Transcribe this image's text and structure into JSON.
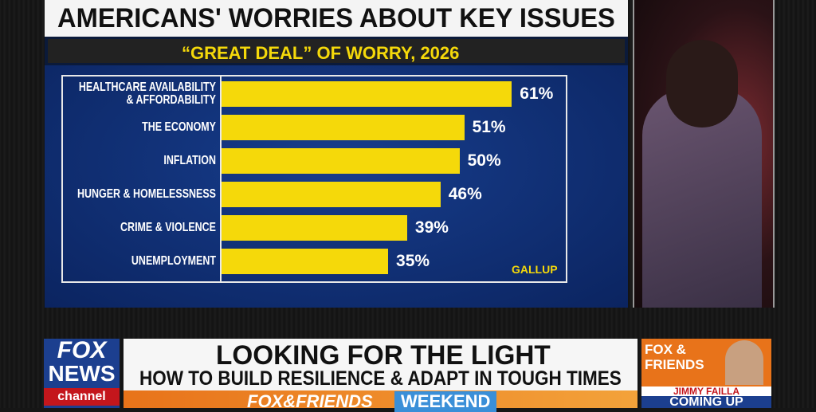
{
  "chart_data": {
    "type": "hbar",
    "title": "AMERICANS' WORRIES ABOUT KEY ISSUES",
    "subtitle": "“GREAT DEAL” OF WORRY, 2026",
    "source": "GALLUP",
    "categories": [
      "HEALTHCARE AVAILABILITY & AFFORDABILITY",
      "THE ECONOMY",
      "INFLATION",
      "HUNGER & HOMELESSNESS",
      "CRIME & VIOLENCE",
      "UNEMPLOYMENT"
    ],
    "values": [
      61,
      51,
      50,
      46,
      39,
      35
    ],
    "value_labels": [
      "61%",
      "51%",
      "50%",
      "46%",
      "39%",
      "35%"
    ],
    "color": "#f5d90a",
    "xlim": [
      0,
      72
    ]
  },
  "screen": {
    "logo_top": "FOX",
    "logo_middle": "NEWS",
    "logo_bottom": "channel",
    "headline": "LOOKING FOR THE LIGHT",
    "subheadline": "HOW TO BUILD RESILIENCE & ADAPT IN TOUGH TIMES",
    "show_left": "FOX&FRIENDS",
    "show_right": "WEEKEND",
    "promo_logo": "FOX & FRIENDS",
    "promo_name": "JIMMY FAILLA",
    "promo_tag": "COMING UP"
  }
}
